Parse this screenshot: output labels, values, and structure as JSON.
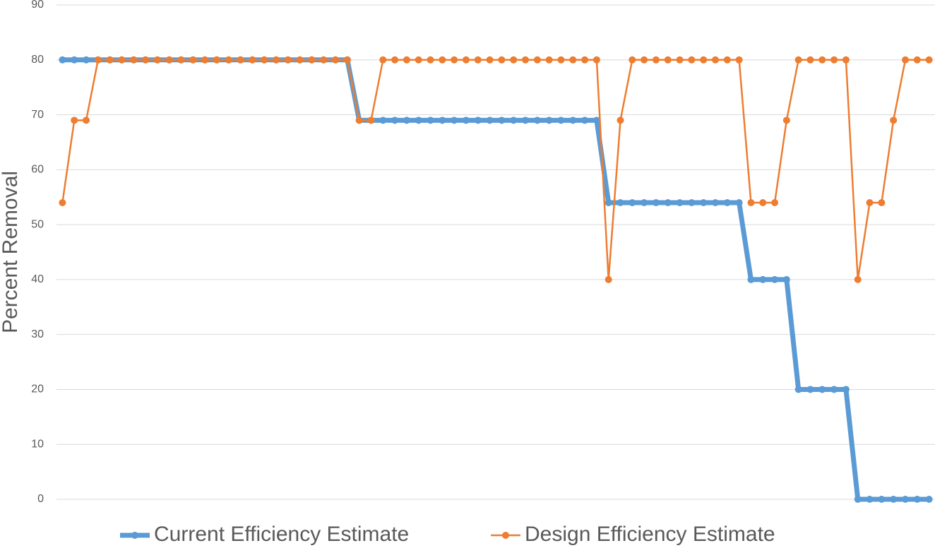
{
  "chart_data": {
    "type": "line",
    "y_label": "Percent Removal",
    "categories": [
      null,
      null,
      null,
      null,
      null,
      null,
      null,
      null,
      null,
      null,
      null,
      null,
      null,
      null,
      null,
      null,
      null,
      null,
      null,
      null,
      null,
      null,
      null,
      null,
      null,
      null,
      null,
      null,
      null,
      null,
      null,
      null,
      null,
      null,
      null,
      null,
      null,
      null,
      null,
      null,
      null,
      null,
      null,
      null,
      null,
      null,
      null,
      null,
      null,
      null,
      null,
      null,
      null,
      null,
      null,
      null,
      null,
      null,
      null,
      null,
      null,
      null,
      null,
      null,
      null,
      null,
      null,
      null,
      null,
      null,
      null,
      null,
      null,
      null
    ],
    "series": [
      {
        "name": "Current Efficiency Estimate",
        "color": "#5b9bd5",
        "values": [
          80,
          80,
          80,
          80,
          80,
          80,
          80,
          80,
          80,
          80,
          80,
          80,
          80,
          80,
          80,
          80,
          80,
          80,
          80,
          80,
          80,
          80,
          80,
          80,
          80,
          69,
          69,
          69,
          69,
          69,
          69,
          69,
          69,
          69,
          69,
          69,
          69,
          69,
          69,
          69,
          69,
          69,
          69,
          69,
          69,
          69,
          54,
          54,
          54,
          54,
          54,
          54,
          54,
          54,
          54,
          54,
          54,
          54,
          40,
          40,
          40,
          40,
          20,
          20,
          20,
          20,
          20,
          0,
          0,
          0,
          0,
          0,
          0,
          0
        ]
      },
      {
        "name": "Design Efficiency Estimate",
        "color": "#ed7d31",
        "values": [
          54,
          69,
          69,
          80,
          80,
          80,
          80,
          80,
          80,
          80,
          80,
          80,
          80,
          80,
          80,
          80,
          80,
          80,
          80,
          80,
          80,
          80,
          80,
          80,
          80,
          69,
          69,
          80,
          80,
          80,
          80,
          80,
          80,
          80,
          80,
          80,
          80,
          80,
          80,
          80,
          80,
          80,
          80,
          80,
          80,
          80,
          40,
          69,
          80,
          80,
          80,
          80,
          80,
          80,
          80,
          80,
          80,
          80,
          54,
          54,
          54,
          69,
          80,
          80,
          80,
          80,
          80,
          40,
          54,
          54,
          69,
          80,
          80,
          80
        ]
      }
    ],
    "ylim": [
      0,
      90
    ],
    "yticks": [
      0,
      10,
      20,
      30,
      40,
      50,
      60,
      70,
      80,
      90
    ],
    "grid": true,
    "legend": "bottom"
  }
}
